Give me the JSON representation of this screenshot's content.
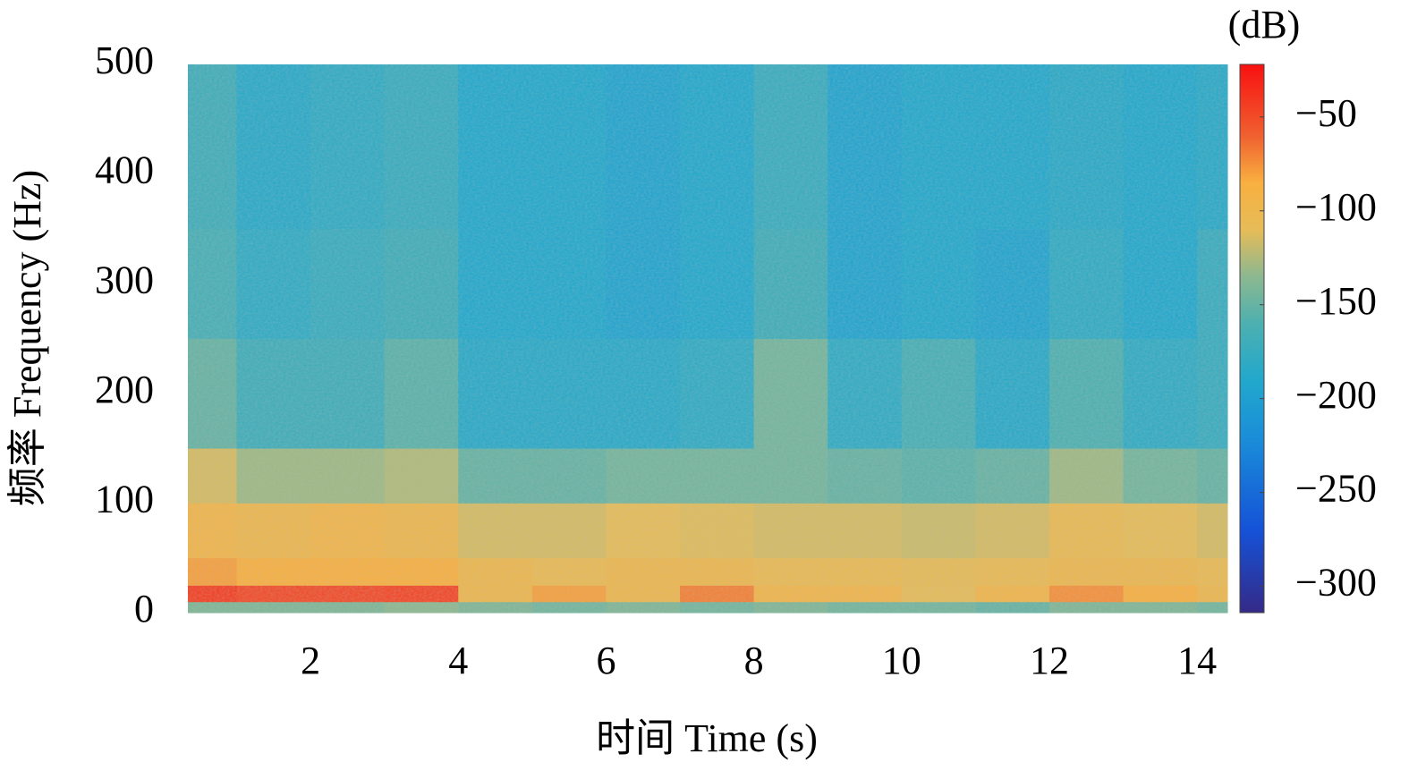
{
  "chart_data": {
    "type": "heatmap",
    "xlabel": "时间 Time (s)",
    "ylabel": "频率 Frequency (Hz)",
    "colorbar_label": "(dB)",
    "xbins": [
      0.34,
      1,
      2,
      3,
      4,
      5,
      6,
      7,
      8,
      9,
      10,
      11,
      12,
      13,
      14,
      14.41
    ],
    "ybins": [
      0,
      10,
      25,
      50,
      100,
      150,
      250,
      350,
      500
    ],
    "values": [
      [
        -140,
        -140,
        -140,
        -135,
        -140,
        -145,
        -140,
        -145,
        -140,
        -145,
        -145,
        -150,
        -140,
        -140,
        -145
      ],
      [
        -45,
        -50,
        -50,
        -48,
        -100,
        -80,
        -100,
        -70,
        -95,
        -95,
        -110,
        -95,
        -75,
        -85,
        -100
      ],
      [
        -80,
        -85,
        -85,
        -85,
        -100,
        -105,
        -100,
        -100,
        -105,
        -105,
        -108,
        -105,
        -100,
        -100,
        -105
      ],
      [
        -95,
        -100,
        -95,
        -100,
        -115,
        -115,
        -110,
        -112,
        -115,
        -115,
        -118,
        -115,
        -105,
        -110,
        -115
      ],
      [
        -115,
        -130,
        -130,
        -125,
        -150,
        -150,
        -145,
        -145,
        -145,
        -150,
        -155,
        -150,
        -130,
        -145,
        -150
      ],
      [
        -150,
        -170,
        -170,
        -155,
        -185,
        -185,
        -185,
        -180,
        -145,
        -180,
        -165,
        -185,
        -160,
        -180,
        -175
      ],
      [
        -165,
        -180,
        -175,
        -170,
        -190,
        -190,
        -195,
        -190,
        -170,
        -195,
        -190,
        -195,
        -180,
        -190,
        -175
      ],
      [
        -170,
        -185,
        -180,
        -175,
        -190,
        -190,
        -195,
        -190,
        -175,
        -195,
        -190,
        -190,
        -185,
        -190,
        -185
      ]
    ],
    "xlim": [
      0.34,
      14.41
    ],
    "ylim": [
      0,
      500
    ],
    "xticks": [
      2,
      4,
      6,
      8,
      10,
      12,
      14
    ],
    "yticks": [
      0,
      100,
      200,
      300,
      400,
      500
    ],
    "clim": [
      -314,
      -22
    ],
    "cticks": [
      {
        "value": -50,
        "label": "−50"
      },
      {
        "value": -100,
        "label": "−100"
      },
      {
        "value": -150,
        "label": "−150"
      },
      {
        "value": -200,
        "label": "−200"
      },
      {
        "value": -250,
        "label": "−250"
      },
      {
        "value": -300,
        "label": "−300"
      }
    ],
    "colorscale": [
      [
        -314,
        "#352a87"
      ],
      [
        -270,
        "#1552d8"
      ],
      [
        -220,
        "#1a8fd8"
      ],
      [
        -190,
        "#22a8cc"
      ],
      [
        -160,
        "#4db0b0"
      ],
      [
        -135,
        "#8cb890"
      ],
      [
        -110,
        "#e6bc58"
      ],
      [
        -85,
        "#f8b040"
      ],
      [
        -60,
        "#f06030"
      ],
      [
        -22,
        "#f81010"
      ]
    ]
  }
}
